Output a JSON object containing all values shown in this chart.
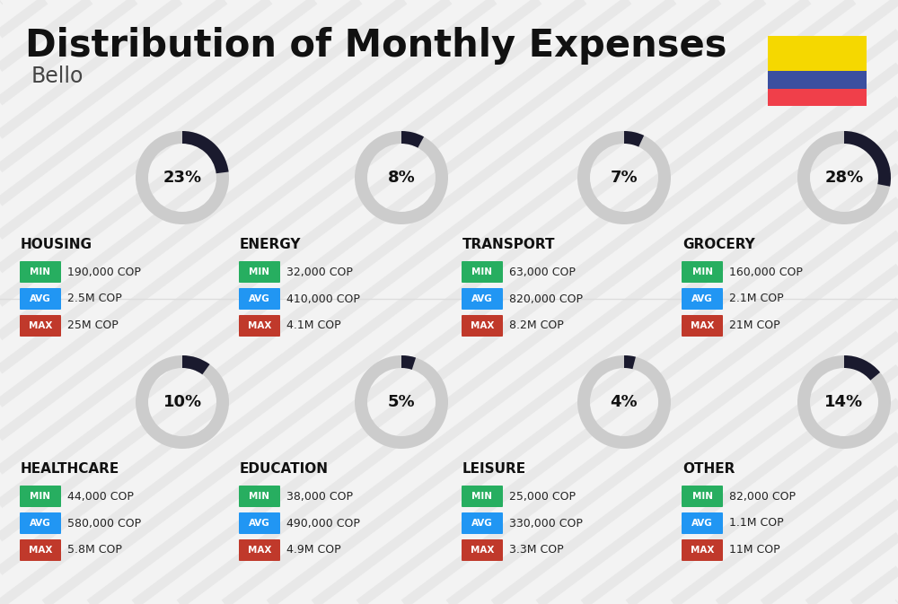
{
  "title": "Distribution of Monthly Expenses",
  "subtitle": "Bello",
  "background_color": "#f3f3f3",
  "categories": [
    {
      "name": "HOUSING",
      "percent": 23,
      "min": "190,000 COP",
      "avg": "2.5M COP",
      "max": "25M COP",
      "row": 0,
      "col": 0
    },
    {
      "name": "ENERGY",
      "percent": 8,
      "min": "32,000 COP",
      "avg": "410,000 COP",
      "max": "4.1M COP",
      "row": 0,
      "col": 1
    },
    {
      "name": "TRANSPORT",
      "percent": 7,
      "min": "63,000 COP",
      "avg": "820,000 COP",
      "max": "8.2M COP",
      "row": 0,
      "col": 2
    },
    {
      "name": "GROCERY",
      "percent": 28,
      "min": "160,000 COP",
      "avg": "2.1M COP",
      "max": "21M COP",
      "row": 0,
      "col": 3
    },
    {
      "name": "HEALTHCARE",
      "percent": 10,
      "min": "44,000 COP",
      "avg": "580,000 COP",
      "max": "5.8M COP",
      "row": 1,
      "col": 0
    },
    {
      "name": "EDUCATION",
      "percent": 5,
      "min": "38,000 COP",
      "avg": "490,000 COP",
      "max": "4.9M COP",
      "row": 1,
      "col": 1
    },
    {
      "name": "LEISURE",
      "percent": 4,
      "min": "25,000 COP",
      "avg": "330,000 COP",
      "max": "3.3M COP",
      "row": 1,
      "col": 2
    },
    {
      "name": "OTHER",
      "percent": 14,
      "min": "82,000 COP",
      "avg": "1.1M COP",
      "max": "11M COP",
      "row": 1,
      "col": 3
    }
  ],
  "color_min": "#27ae60",
  "color_avg": "#2196f3",
  "color_max": "#c0392b",
  "donut_arc_color": "#1a1a2e",
  "donut_bg_color": "#cccccc",
  "flag_colors": [
    "#f5d800",
    "#3b4fa0",
    "#f03f4a"
  ],
  "flag_proportions": [
    0.5,
    0.25,
    0.25
  ],
  "text_color": "#111111",
  "label_text_color": "#ffffff",
  "value_text_color": "#222222"
}
